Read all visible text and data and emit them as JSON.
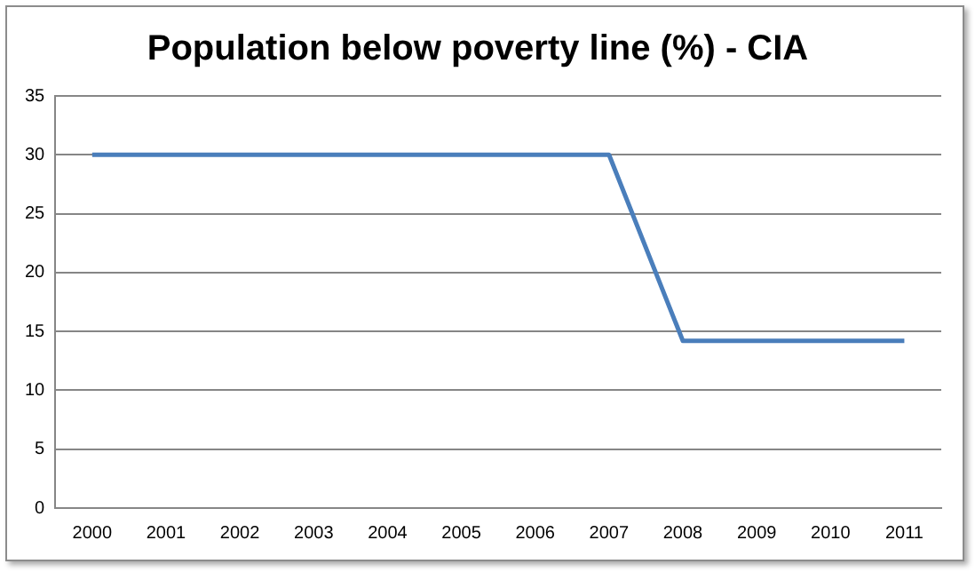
{
  "chart_data": {
    "type": "line",
    "title": "Population below poverty line (%) - CIA",
    "categories": [
      "2000",
      "2001",
      "2002",
      "2003",
      "2004",
      "2005",
      "2006",
      "2007",
      "2008",
      "2009",
      "2010",
      "2011"
    ],
    "series": [
      {
        "color": "#4a7ebb",
        "values": [
          30,
          30,
          30,
          30,
          30,
          30,
          30,
          30,
          14.2,
          14.2,
          14.2,
          14.2
        ]
      }
    ],
    "ylim": [
      0,
      35
    ],
    "yticks": [
      0,
      5,
      10,
      15,
      20,
      25,
      30,
      35
    ],
    "grid": "y",
    "legend": false,
    "marker": "none",
    "line_style": "solid"
  }
}
